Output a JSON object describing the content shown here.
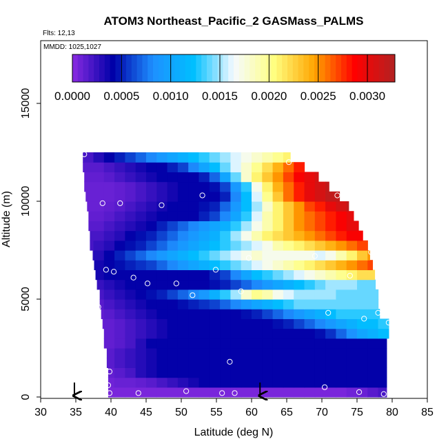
{
  "chart_data": {
    "type": "heatmap",
    "title": "ATOM3 Northeast_Pacific_2 GASMass_PALMS",
    "flights_label": "Flts: 12,13",
    "dates_label": "MMDD: 1025,1027",
    "xlabel": "Latitude (deg N)",
    "ylabel": "Altitude (m)",
    "xlim": [
      30,
      85
    ],
    "ylim": [
      0,
      17500
    ],
    "x_ticks": [
      "30",
      "35",
      "40",
      "45",
      "50",
      "55",
      "60",
      "65",
      "70",
      "75",
      "80",
      "85"
    ],
    "y_ticks": [
      "0",
      "5000",
      "10000",
      "15000"
    ],
    "colorbar": {
      "range": [
        0.0,
        0.00328
      ],
      "ticks": [
        "0.0000",
        "0.0005",
        "0.0010",
        "0.0015",
        "0.0020",
        "0.0025",
        "0.0030"
      ],
      "tick_values": [
        0.0,
        0.0005,
        0.001,
        0.0015,
        0.002,
        0.0025,
        0.003
      ],
      "colors": [
        "#8a2be2",
        "#0000a8",
        "#1e90ff",
        "#00bfff",
        "#f5faff",
        "#ffff80",
        "#ffa500",
        "#ff0000",
        "#b22222"
      ]
    },
    "grid": {
      "lat_edges": [
        36.0,
        37.5,
        39.0,
        40.5,
        42.0,
        43.5,
        45.0,
        46.5,
        48.0,
        49.5,
        51.0,
        52.5,
        54.0,
        55.5,
        57.0,
        58.5,
        60.0,
        61.5,
        63.0,
        64.5,
        66.0,
        67.5,
        69.0,
        70.5,
        72.0,
        73.5,
        75.0,
        76.5,
        78.0,
        79.5
      ],
      "altitude_bins_m": [
        [
          0,
          500
        ],
        [
          500,
          1000
        ],
        [
          1000,
          1500
        ],
        [
          1500,
          2000
        ],
        [
          2000,
          2500
        ],
        [
          2500,
          3000
        ],
        [
          3000,
          3500
        ],
        [
          3500,
          4000
        ],
        [
          4000,
          4500
        ],
        [
          4500,
          5000
        ],
        [
          5000,
          5500
        ],
        [
          5500,
          6000
        ],
        [
          6000,
          6500
        ],
        [
          6500,
          7000
        ],
        [
          7000,
          7500
        ],
        [
          7500,
          8000
        ],
        [
          8000,
          8500
        ],
        [
          8500,
          9000
        ],
        [
          9000,
          9500
        ],
        [
          9500,
          10000
        ],
        [
          10000,
          10500
        ],
        [
          10500,
          11000
        ],
        [
          11000,
          11500
        ],
        [
          11500,
          12000
        ],
        [
          12000,
          12500
        ]
      ],
      "start_lat": [
        39.6,
        39.6,
        39.6,
        39.4,
        39.4,
        39.0,
        39.0,
        38.8,
        38.6,
        38.4,
        38.4,
        38.0,
        37.8,
        37.6,
        37.4,
        37.0,
        37.0,
        36.8,
        36.8,
        36.6,
        36.4,
        36.2,
        36.2,
        36.0,
        36.0
      ],
      "end_lat": [
        79.2,
        79.2,
        79.2,
        79.2,
        79.2,
        79.2,
        79.5,
        79.5,
        78.2,
        78.0,
        78.0,
        77.6,
        77.5,
        77.2,
        76.8,
        76.5,
        75.8,
        75.2,
        74.5,
        73.8,
        72.5,
        71.0,
        69.5,
        67.5,
        65.5
      ],
      "values": [
        [
          5e-05,
          5e-05,
          5e-05,
          5e-05,
          5e-05,
          5e-05,
          5e-05,
          5e-05,
          5e-05,
          5e-05,
          5e-05,
          5e-05,
          5e-05,
          5e-05,
          5e-05,
          5e-05,
          5e-05,
          5e-05,
          5e-05,
          5e-05,
          5e-05,
          5e-05,
          5e-05,
          5e-05,
          5e-05,
          8e-05,
          0.0001,
          0.00015,
          0.0002
        ],
        [
          8e-05,
          8e-05,
          8e-05,
          0.0001,
          0.0001,
          0.00012,
          0.00015,
          0.0002,
          0.00025,
          0.0003,
          0.00035,
          0.0004,
          0.0004,
          0.0004,
          0.0004,
          0.0004,
          0.0004,
          0.0004,
          0.0004,
          0.0004,
          0.0004,
          0.0004,
          0.0004,
          0.0004,
          0.0004,
          0.0004,
          0.0004,
          0.0004,
          0.0004
        ],
        [
          0.0001,
          0.0001,
          0.00012,
          0.00015,
          0.0002,
          0.0003,
          0.00035,
          0.0004,
          0.0004,
          0.0004,
          0.0004,
          0.0004,
          0.0004,
          0.0004,
          0.0004,
          0.0004,
          0.0004,
          0.0004,
          0.0004,
          0.0004,
          0.0004,
          0.0004,
          0.0004,
          0.0004,
          0.0004,
          0.0004,
          0.0004,
          0.0004,
          0.0004
        ],
        [
          0.0001,
          0.00012,
          0.00015,
          0.0002,
          0.00025,
          0.0003,
          0.00035,
          0.0004,
          0.0004,
          0.0004,
          0.0004,
          0.0004,
          0.0004,
          0.0004,
          0.0004,
          0.0004,
          0.0004,
          0.0004,
          0.0004,
          0.0004,
          0.0004,
          0.0004,
          0.0004,
          0.0004,
          0.0004,
          0.0004,
          0.0004,
          0.0004,
          0.0004
        ],
        [
          0.0001,
          0.00012,
          0.00015,
          0.0002,
          0.00025,
          0.0003,
          0.00035,
          0.0004,
          0.0004,
          0.0004,
          0.0004,
          0.0004,
          0.0004,
          0.0004,
          0.0004,
          0.0004,
          0.0004,
          0.0004,
          0.0004,
          0.0004,
          0.0004,
          0.0004,
          0.0004,
          0.0004,
          0.0004,
          0.0004,
          0.0004,
          0.0004,
          0.0004
        ],
        [
          0.0001,
          0.0001,
          0.00012,
          0.00015,
          0.0002,
          0.0003,
          0.0004,
          0.0004,
          0.0004,
          0.0004,
          0.0004,
          0.0004,
          0.0004,
          0.0004,
          0.0004,
          0.0004,
          0.0004,
          0.0004,
          0.0004,
          0.0004,
          0.0004,
          0.0004,
          0.0004,
          0.0004,
          0.0004,
          0.0004,
          0.0004,
          0.0004,
          0.0004
        ],
        [
          0.0001,
          0.0001,
          0.00012,
          0.00015,
          0.0002,
          0.00025,
          0.0003,
          0.00035,
          0.0004,
          0.0004,
          0.0004,
          0.0004,
          0.0004,
          0.0004,
          0.0004,
          0.0004,
          0.0004,
          0.0004,
          0.0004,
          0.0004,
          0.0004,
          0.0004,
          0.00045,
          0.00055,
          0.0007,
          0.00085,
          0.001,
          0.0011,
          0.0012
        ],
        [
          0.0001,
          0.0001,
          0.00012,
          0.00015,
          0.0002,
          0.00025,
          0.0003,
          0.00035,
          0.0004,
          0.0004,
          0.0004,
          0.0004,
          0.0004,
          0.0004,
          0.0004,
          0.0004,
          0.0004,
          0.0004,
          0.00045,
          0.0005,
          0.0006,
          0.0007,
          0.0008,
          0.0009,
          0.001,
          0.0011,
          0.0012,
          0.0012,
          0.0013
        ],
        [
          0.00012,
          0.00012,
          0.00015,
          0.0002,
          0.00025,
          0.0003,
          0.00035,
          0.0004,
          0.0004,
          0.0004,
          0.0004,
          0.0004,
          0.0004,
          0.0004,
          0.0004,
          0.00045,
          0.0005,
          0.0006,
          0.0007,
          0.0008,
          0.0009,
          0.001,
          0.0011,
          0.0012,
          0.0013,
          0.0013,
          0.0013,
          0.0013,
          0.0013
        ],
        [
          0.00015,
          0.00015,
          0.0002,
          0.00025,
          0.0003,
          0.00035,
          0.0004,
          0.0004,
          0.0004,
          0.00045,
          0.0005,
          0.00055,
          0.0006,
          0.0007,
          0.0008,
          0.0009,
          0.001,
          0.0011,
          0.0012,
          0.0013,
          0.0014,
          0.0014,
          0.0014,
          0.0014,
          0.0014,
          0.0014,
          0.0014,
          0.0014,
          0.0014
        ],
        [
          0.0002,
          0.0002,
          0.00025,
          0.0003,
          0.00035,
          0.0004,
          0.00045,
          0.0005,
          0.0006,
          0.0007,
          0.0008,
          0.0009,
          0.0011,
          0.0013,
          0.0015,
          0.0018,
          0.002,
          0.0019,
          0.0017,
          0.0016,
          0.0015,
          0.0015,
          0.0015,
          0.0015,
          0.0014,
          0.0014,
          0.0014,
          0.0014,
          0.0014
        ],
        [
          0.0002,
          0.00025,
          0.0003,
          0.00035,
          0.0004,
          0.0004,
          0.0004,
          0.0004,
          0.0004,
          0.0004,
          0.0004,
          0.0004,
          0.00045,
          0.0005,
          0.0006,
          0.0007,
          0.0008,
          0.0009,
          0.001,
          0.0011,
          0.0012,
          0.0013,
          0.0014,
          0.0015,
          0.0015,
          0.0015,
          0.0014,
          0.0014,
          0.0014
        ],
        [
          0.0003,
          0.00035,
          0.0004,
          0.0004,
          0.0004,
          0.0004,
          0.0004,
          0.0004,
          0.0004,
          0.0004,
          0.0004,
          0.0004,
          0.0005,
          0.0006,
          0.0008,
          0.001,
          0.0012,
          0.0013,
          0.0014,
          0.0015,
          0.0016,
          0.0017,
          0.0018,
          0.0019,
          0.002,
          0.0021,
          0.0022,
          0.0022,
          0.0022
        ],
        [
          0.0003,
          0.00035,
          0.0004,
          0.00045,
          0.0005,
          0.00055,
          0.0006,
          0.0007,
          0.0008,
          0.0009,
          0.001,
          0.0011,
          0.0012,
          0.0013,
          0.0014,
          0.0015,
          0.0016,
          0.0017,
          0.0018,
          0.0019,
          0.002,
          0.0021,
          0.0022,
          0.0023,
          0.0024,
          0.0025,
          0.0026,
          0.0027,
          0.0027
        ],
        [
          0.00025,
          0.0003,
          0.0004,
          0.0005,
          0.0006,
          0.0007,
          0.0008,
          0.0009,
          0.001,
          0.0011,
          0.0012,
          0.0013,
          0.0014,
          0.0015,
          0.0016,
          0.0017,
          0.0018,
          0.0017,
          0.0017,
          0.0017,
          0.0017,
          0.0017,
          0.0016,
          0.0017,
          0.0019,
          0.0021,
          0.0023,
          0.0025,
          0.0026
        ],
        [
          0.0002,
          0.00025,
          0.0003,
          0.0004,
          0.00045,
          0.0005,
          0.0006,
          0.0007,
          0.0008,
          0.0009,
          0.001,
          0.0011,
          0.0012,
          0.0013,
          0.0014,
          0.0015,
          0.0016,
          0.0017,
          0.0019,
          0.002,
          0.0021,
          0.0022,
          0.0023,
          0.0024,
          0.0025,
          0.0026,
          0.0027,
          0.0028,
          0.0028
        ],
        [
          0.0002,
          0.0002,
          0.00025,
          0.0003,
          0.0004,
          0.00045,
          0.0005,
          0.0006,
          0.0007,
          0.0008,
          0.0009,
          0.001,
          0.0011,
          0.0013,
          0.0015,
          0.0017,
          0.0019,
          0.0021,
          0.0022,
          0.0023,
          0.0024,
          0.0025,
          0.0026,
          0.0027,
          0.0028,
          0.0029,
          0.0029,
          0.0029,
          0.0029
        ],
        [
          0.00015,
          0.00015,
          0.0002,
          0.00025,
          0.0003,
          0.00035,
          0.0004,
          0.0005,
          0.0006,
          0.0007,
          0.0008,
          0.0009,
          0.001,
          0.0011,
          0.0013,
          0.0015,
          0.0017,
          0.0019,
          0.0021,
          0.0023,
          0.0025,
          0.0026,
          0.0027,
          0.0028,
          0.0029,
          0.003,
          0.003,
          0.003,
          0.003
        ],
        [
          0.00012,
          0.00012,
          0.00015,
          0.0002,
          0.00025,
          0.0003,
          0.00035,
          0.0004,
          0.0004,
          0.0004,
          0.0004,
          0.0005,
          0.0006,
          0.0008,
          0.001,
          0.0013,
          0.0016,
          0.0019,
          0.0021,
          0.0023,
          0.0025,
          0.0026,
          0.0027,
          0.0028,
          0.0029,
          0.003,
          0.0031,
          0.0031,
          0.0031
        ],
        [
          0.0001,
          0.0001,
          0.00012,
          0.00015,
          0.0002,
          0.00025,
          0.0003,
          0.00035,
          0.0004,
          0.0004,
          0.0004,
          0.00045,
          0.0005,
          0.0007,
          0.0009,
          0.0012,
          0.0015,
          0.0018,
          0.0021,
          0.0023,
          0.0025,
          0.0027,
          0.0028,
          0.003,
          0.0031,
          0.0032,
          0.0032,
          0.0032,
          0.0032
        ],
        [
          0.0001,
          0.0001,
          0.0001,
          0.00012,
          0.00015,
          0.0002,
          0.00025,
          0.0003,
          0.00035,
          0.0004,
          0.0004,
          0.0004,
          0.0004,
          0.0005,
          0.0008,
          0.0012,
          0.0016,
          0.002,
          0.0023,
          0.0026,
          0.0028,
          0.003,
          0.0031,
          0.0032,
          0.0032,
          0.0032,
          0.0032,
          0.0032,
          0.0032
        ],
        [
          0.0001,
          0.0001,
          0.0001,
          0.00012,
          0.00015,
          0.0002,
          0.00025,
          0.0003,
          0.00035,
          0.0004,
          0.0004,
          0.0004,
          0.00045,
          0.0006,
          0.0009,
          0.0013,
          0.0017,
          0.0021,
          0.0024,
          0.0026,
          0.0028,
          0.003,
          0.0031,
          0.0032,
          0.0032,
          0.0032,
          0.0032,
          0.0032,
          0.0032
        ],
        [
          0.00012,
          0.00012,
          0.00015,
          0.0002,
          0.00025,
          0.0003,
          0.00035,
          0.0004,
          0.0004,
          0.0004,
          0.0004,
          0.0005,
          0.0007,
          0.001,
          0.0014,
          0.0018,
          0.0021,
          0.0023,
          0.0025,
          0.0027,
          0.0029,
          0.003,
          0.0031,
          0.0032,
          0.0032,
          0.0032,
          0.0032,
          0.0032,
          0.0032
        ],
        [
          0.00015,
          0.00015,
          0.0002,
          0.00025,
          0.0003,
          0.00035,
          0.0004,
          0.0004,
          0.0005,
          0.0006,
          0.0008,
          0.001,
          0.0012,
          0.0014,
          0.0016,
          0.0018,
          0.002,
          0.0022,
          0.0024,
          0.0026,
          0.0028,
          0.003,
          0.0031,
          0.0032,
          0.0032,
          0.0032,
          0.0032,
          0.0032,
          0.0032
        ],
        [
          0.0002,
          0.0003,
          0.0004,
          0.0005,
          0.0006,
          0.0007,
          0.0008,
          0.0009,
          0.001,
          0.0011,
          0.0012,
          0.0013,
          0.0014,
          0.0015,
          0.0016,
          0.0017,
          0.0018,
          0.0019,
          0.002,
          0.0021,
          0.0022,
          0.0024,
          0.0026,
          0.0028,
          0.003,
          0.0031,
          0.0032,
          0.0032,
          0.0032
        ]
      ]
    },
    "observations": [
      {
        "lat": 36.2,
        "alt": 12400
      },
      {
        "lat": 65.3,
        "alt": 12000
      },
      {
        "lat": 72.2,
        "alt": 10300
      },
      {
        "lat": 38.8,
        "alt": 9900
      },
      {
        "lat": 41.3,
        "alt": 9900
      },
      {
        "lat": 47.2,
        "alt": 9800
      },
      {
        "lat": 53.0,
        "alt": 10300
      },
      {
        "lat": 37.0,
        "alt": 7200
      },
      {
        "lat": 59.6,
        "alt": 7100
      },
      {
        "lat": 69.0,
        "alt": 7200
      },
      {
        "lat": 77.0,
        "alt": 7400
      },
      {
        "lat": 39.3,
        "alt": 6500
      },
      {
        "lat": 40.4,
        "alt": 6400
      },
      {
        "lat": 43.2,
        "alt": 6100
      },
      {
        "lat": 45.2,
        "alt": 5800
      },
      {
        "lat": 49.3,
        "alt": 5800
      },
      {
        "lat": 54.9,
        "alt": 6500
      },
      {
        "lat": 74.0,
        "alt": 6200
      },
      {
        "lat": 51.6,
        "alt": 5200
      },
      {
        "lat": 58.5,
        "alt": 5400
      },
      {
        "lat": 38.2,
        "alt": 4600
      },
      {
        "lat": 70.9,
        "alt": 4300
      },
      {
        "lat": 76.0,
        "alt": 4000
      },
      {
        "lat": 78.0,
        "alt": 4300
      },
      {
        "lat": 79.5,
        "alt": 3800
      },
      {
        "lat": 56.9,
        "alt": 1800
      },
      {
        "lat": 39.8,
        "alt": 1300
      },
      {
        "lat": 39.6,
        "alt": 600
      },
      {
        "lat": 70.4,
        "alt": 500
      },
      {
        "lat": 39.8,
        "alt": 200
      },
      {
        "lat": 43.9,
        "alt": 200
      },
      {
        "lat": 50.7,
        "alt": 300
      },
      {
        "lat": 55.8,
        "alt": 200
      },
      {
        "lat": 57.6,
        "alt": 200
      },
      {
        "lat": 75.3,
        "alt": 250
      },
      {
        "lat": 78.8,
        "alt": 150
      }
    ],
    "arrows_lat": [
      34.8,
      61.2
    ]
  }
}
